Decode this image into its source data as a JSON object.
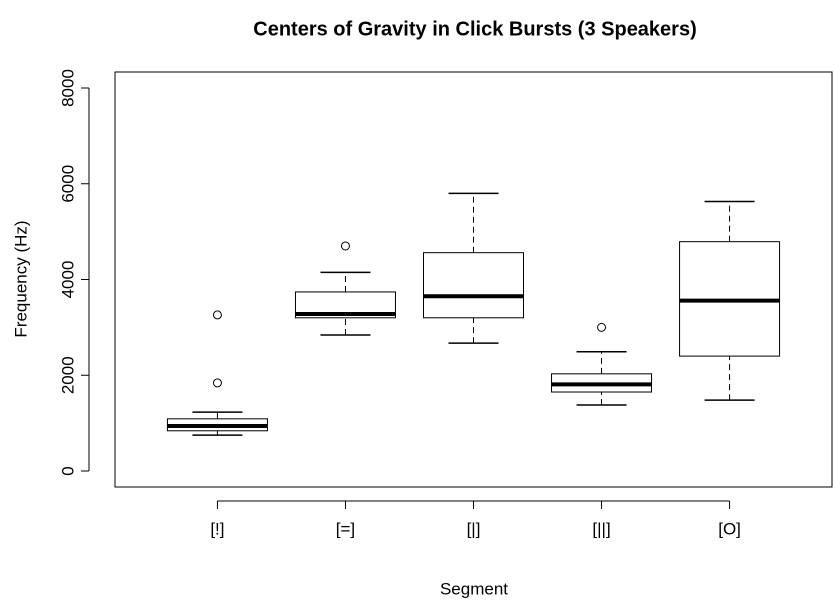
{
  "chart_data": {
    "type": "boxplot",
    "title": "Centers of Gravity in Click Bursts (3 Speakers)",
    "xlabel": "Segment",
    "ylabel": "Frequency (Hz)",
    "categories": [
      "[!]",
      "[=]",
      "[|]",
      "[||]",
      "[O]"
    ],
    "boxes": [
      {
        "whislo": 750,
        "q1": 840,
        "med": 940,
        "q3": 1090,
        "whishi": 1230,
        "fliers": [
          1840,
          3260
        ]
      },
      {
        "whislo": 2840,
        "q1": 3200,
        "med": 3280,
        "q3": 3740,
        "whishi": 4150,
        "fliers": [
          4700
        ]
      },
      {
        "whislo": 2670,
        "q1": 3200,
        "med": 3650,
        "q3": 4560,
        "whishi": 5800,
        "fliers": []
      },
      {
        "whislo": 1380,
        "q1": 1650,
        "med": 1810,
        "q3": 2030,
        "whishi": 2490,
        "fliers": [
          3000
        ]
      },
      {
        "whislo": 1480,
        "q1": 2400,
        "med": 3560,
        "q3": 4790,
        "whishi": 5630,
        "fliers": []
      }
    ],
    "color": "#ffffff",
    "ylim": [
      -334,
      8334
    ],
    "yticks": [
      0,
      2000,
      4000,
      6000,
      8000
    ]
  }
}
